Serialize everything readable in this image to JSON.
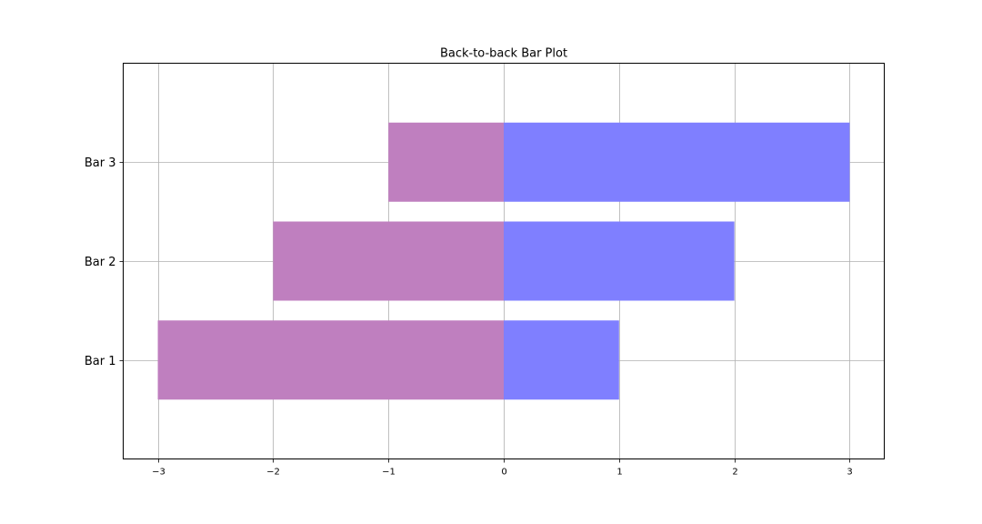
{
  "chart_data": {
    "type": "bar",
    "orientation": "horizontal",
    "title": "Back-to-back Bar Plot",
    "xlabel": "",
    "ylabel": "",
    "categories": [
      "Bar 1",
      "Bar 2",
      "Bar 3"
    ],
    "series": [
      {
        "values": [
          -3,
          -2,
          -1
        ],
        "color": "#bf7fbf"
      },
      {
        "values": [
          1,
          2,
          3
        ],
        "color": "#7f7fff"
      }
    ],
    "xlim": [
      -3.3,
      3.3
    ],
    "ylim": [
      -1.0,
      3.0
    ],
    "x_ticks": [
      -3,
      -2,
      -1,
      0,
      1,
      2,
      3
    ],
    "x_tick_labels": [
      "−3",
      "−2",
      "−1",
      "0",
      "1",
      "2",
      "3"
    ],
    "grid": true,
    "bar_height": 0.8
  }
}
